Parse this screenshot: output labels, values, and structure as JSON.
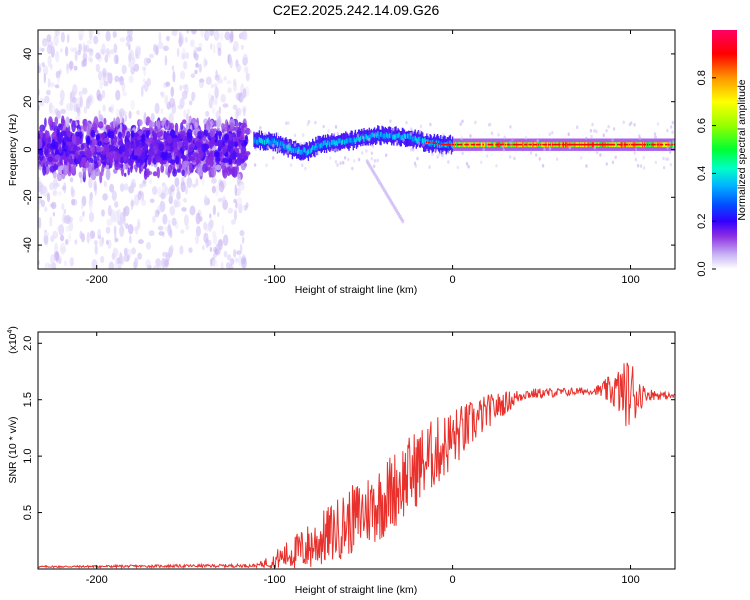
{
  "title": "C2E2.2025.242.14.09.G26",
  "chart_data": [
    {
      "type": "heatmap",
      "name": "spectrogram",
      "xlabel": "Height of straight line (km)",
      "ylabel": "Frequency (Hz)",
      "xlim": [
        -233,
        125
      ],
      "ylim": [
        -50,
        50
      ],
      "xticks": [
        -200,
        -100,
        0,
        100
      ],
      "xtick_labels": [
        "-200",
        "-100",
        "0",
        "100"
      ],
      "yticks": [
        40,
        20,
        0,
        -20,
        -40
      ],
      "ytick_labels": [
        "40",
        "20",
        "0",
        "-20",
        "-40"
      ],
      "colorbar": {
        "label": "Normalized spectral amplitude",
        "range": [
          0,
          1
        ],
        "ticks": [
          0.0,
          0.2,
          0.4,
          0.6,
          0.8
        ],
        "tick_labels": [
          "0.0",
          "0.2",
          "0.4",
          "0.6",
          "0.8"
        ],
        "colormap": [
          "#ffffff",
          "#c8b4f4",
          "#8a2be2",
          "#3200ff",
          "#0050ff",
          "#00b4ff",
          "#00ffc8",
          "#00ff32",
          "#96ff00",
          "#ffff00",
          "#ff9600",
          "#ff0000",
          "#ff0064"
        ]
      },
      "noise_region": {
        "x": [
          -233,
          -115
        ],
        "frequency_spread": [
          -50,
          50
        ]
      },
      "signal_track": [
        {
          "x": -112,
          "y": 4
        },
        {
          "x": -100,
          "y": 3
        },
        {
          "x": -90,
          "y": 0
        },
        {
          "x": -82,
          "y": -1
        },
        {
          "x": -75,
          "y": 2
        },
        {
          "x": -65,
          "y": 3
        },
        {
          "x": -55,
          "y": 4
        },
        {
          "x": -45,
          "y": 6
        },
        {
          "x": -35,
          "y": 6
        },
        {
          "x": -25,
          "y": 5
        },
        {
          "x": -15,
          "y": 3
        },
        {
          "x": -5,
          "y": 2
        },
        {
          "x": 10,
          "y": 2
        },
        {
          "x": 30,
          "y": 2
        },
        {
          "x": 60,
          "y": 2
        },
        {
          "x": 90,
          "y": 2
        },
        {
          "x": 125,
          "y": 2
        }
      ],
      "faint_trail": [
        {
          "x": -48,
          "y": -5
        },
        {
          "x": -35,
          "y": -17
        },
        {
          "x": -28,
          "y": -30
        }
      ]
    },
    {
      "type": "line",
      "name": "snr",
      "xlabel": "Height of straight line (km)",
      "ylabel": "SNR (10 * v/v)",
      "y_multiplier": "(x10",
      "y_multiplier_exp": "4",
      "xlim": [
        -233,
        125
      ],
      "ylim": [
        0,
        2.1
      ],
      "xticks": [
        -200,
        -100,
        0,
        100
      ],
      "xtick_labels": [
        "-200",
        "-100",
        "0",
        "100"
      ],
      "yticks": [
        0.5,
        1.0,
        1.5,
        2.0
      ],
      "ytick_labels": [
        "0.5",
        "1.0",
        "1.5",
        "2.0"
      ],
      "color": "#e8312c",
      "envelope": [
        {
          "x": -233,
          "mean": 0.02,
          "noise": 0.008
        },
        {
          "x": -110,
          "mean": 0.03,
          "noise": 0.015
        },
        {
          "x": -100,
          "mean": 0.08,
          "noise": 0.08
        },
        {
          "x": -80,
          "mean": 0.2,
          "noise": 0.22
        },
        {
          "x": -60,
          "mean": 0.4,
          "noise": 0.3
        },
        {
          "x": -40,
          "mean": 0.6,
          "noise": 0.35
        },
        {
          "x": -20,
          "mean": 0.9,
          "noise": 0.35
        },
        {
          "x": 0,
          "mean": 1.15,
          "noise": 0.28
        },
        {
          "x": 20,
          "mean": 1.4,
          "noise": 0.15
        },
        {
          "x": 40,
          "mean": 1.55,
          "noise": 0.05
        },
        {
          "x": 80,
          "mean": 1.58,
          "noise": 0.03
        },
        {
          "x": 92,
          "mean": 1.58,
          "noise": 0.18
        },
        {
          "x": 100,
          "mean": 1.55,
          "noise": 0.35
        },
        {
          "x": 108,
          "mean": 1.55,
          "noise": 0.06
        },
        {
          "x": 125,
          "mean": 1.53,
          "noise": 0.02
        }
      ]
    }
  ]
}
